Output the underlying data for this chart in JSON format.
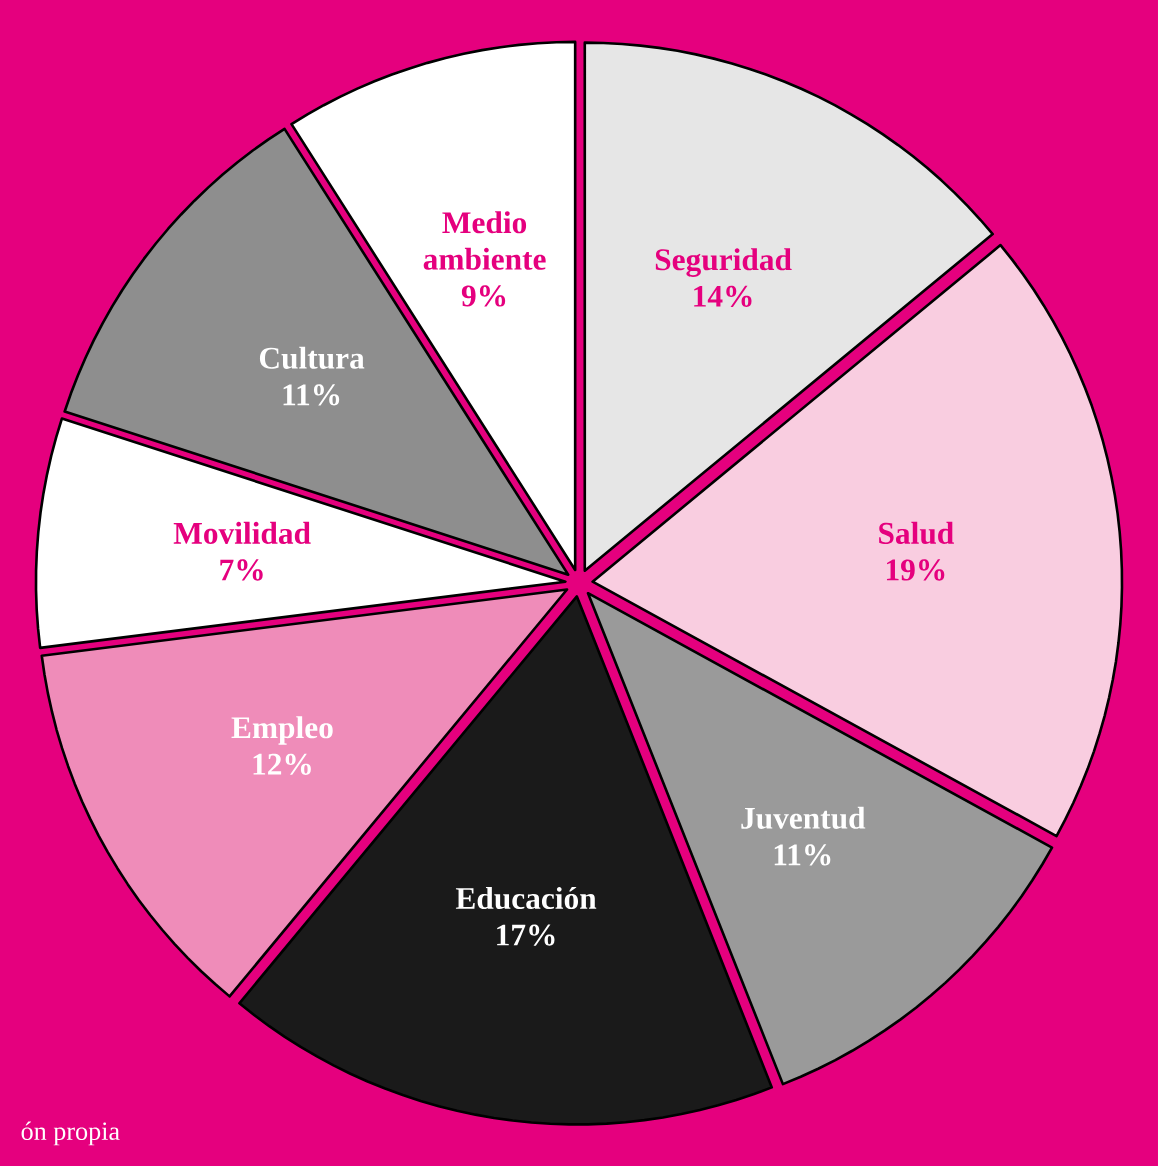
{
  "chart_data": {
    "type": "pie",
    "categories": [
      "Seguridad",
      "Salud",
      "Juventud",
      "Educación",
      "Empleo",
      "Movilidad",
      "Cultura",
      "Medio ambiente"
    ],
    "values": [
      14,
      19,
      11,
      17,
      12,
      7,
      11,
      9
    ],
    "value_labels": [
      "14%",
      "19%",
      "11%",
      "17%",
      "12%",
      "7%",
      "11%",
      "9%"
    ],
    "colors": [
      "#e6e6e6",
      "#f9cde0",
      "#9a9a9a",
      "#1a1a1a",
      "#ef8cb9",
      "#ffffff",
      "#8e8e8e",
      "#ffffff"
    ],
    "annotations": [
      "ón propia"
    ]
  }
}
